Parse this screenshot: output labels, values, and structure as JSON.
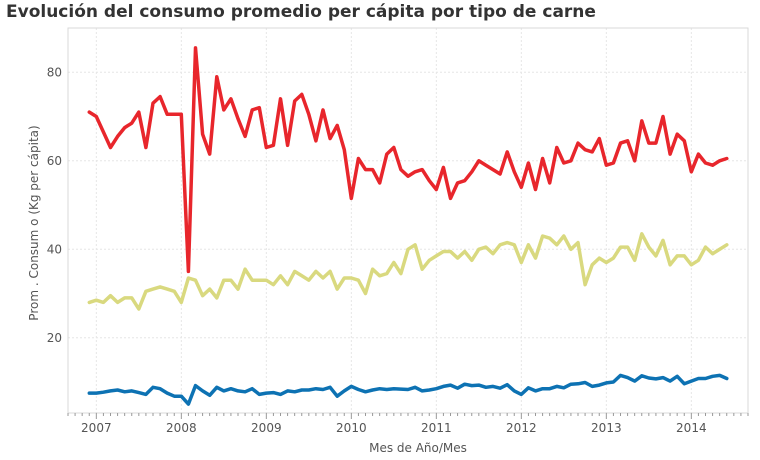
{
  "chart_data": {
    "type": "line",
    "title": "Evolución del consumo promedio per cápita por tipo de carne",
    "xlabel": "Mes de Año/Mes",
    "ylabel": "Prom . Consum o (Kg per cápita)",
    "x_ticks": [
      "2007",
      "2008",
      "2009",
      "2010",
      "2011",
      "2012",
      "2013",
      "2014"
    ],
    "y_ticks": [
      20,
      40,
      60,
      80
    ],
    "ylim": [
      3,
      90
    ],
    "xlim": [
      "2006-09",
      "2014-09"
    ],
    "grid": true,
    "legend": "none",
    "x": [
      "2006-12",
      "2007-01",
      "2007-02",
      "2007-03",
      "2007-04",
      "2007-05",
      "2007-06",
      "2007-07",
      "2007-08",
      "2007-09",
      "2007-10",
      "2007-11",
      "2007-12",
      "2008-01",
      "2008-02",
      "2008-03",
      "2008-04",
      "2008-05",
      "2008-06",
      "2008-07",
      "2008-08",
      "2008-09",
      "2008-10",
      "2008-11",
      "2008-12",
      "2009-01",
      "2009-02",
      "2009-03",
      "2009-04",
      "2009-05",
      "2009-06",
      "2009-07",
      "2009-08",
      "2009-09",
      "2009-10",
      "2009-11",
      "2009-12",
      "2010-01",
      "2010-02",
      "2010-03",
      "2010-04",
      "2010-05",
      "2010-06",
      "2010-07",
      "2010-08",
      "2010-09",
      "2010-10",
      "2010-11",
      "2010-12",
      "2011-01",
      "2011-02",
      "2011-03",
      "2011-04",
      "2011-05",
      "2011-06",
      "2011-07",
      "2011-08",
      "2011-09",
      "2011-10",
      "2011-11",
      "2011-12",
      "2012-01",
      "2012-02",
      "2012-03",
      "2012-04",
      "2012-05",
      "2012-06",
      "2012-07",
      "2012-08",
      "2012-09",
      "2012-10",
      "2012-11",
      "2012-12",
      "2013-01",
      "2013-02",
      "2013-03",
      "2013-04",
      "2013-05",
      "2013-06",
      "2013-07",
      "2013-08",
      "2013-09",
      "2013-10",
      "2013-11",
      "2013-12",
      "2014-01",
      "2014-02",
      "2014-03",
      "2014-04",
      "2014-05",
      "2014-06"
    ],
    "series": [
      {
        "color": "#e8262c",
        "values": [
          71,
          70,
          66.5,
          63,
          65.5,
          67.5,
          68.5,
          71,
          63,
          73,
          74.5,
          70.5,
          70.5,
          70.5,
          35,
          85.5,
          66,
          61.5,
          79,
          71.5,
          74,
          69.5,
          65.5,
          71.5,
          72,
          63,
          63.5,
          74,
          63.5,
          73.5,
          75,
          70.5,
          64.5,
          71.5,
          65,
          68,
          62.5,
          51.5,
          60.5,
          58,
          58,
          55,
          61.5,
          63,
          58,
          56.5,
          57.5,
          58,
          55.5,
          53.5,
          58.5,
          51.5,
          55,
          55.5,
          57.5,
          60,
          59,
          58,
          57,
          62,
          57.5,
          54,
          59.5,
          53.5,
          60.5,
          55,
          63,
          59.5,
          60,
          64,
          62.5,
          62,
          65,
          59,
          59.5,
          64,
          64.5,
          60,
          69,
          64,
          64,
          70,
          61.5,
          66,
          64.5,
          57.5,
          61.5,
          59.5,
          59,
          60,
          60.5
        ]
      },
      {
        "color": "#d9d97f",
        "values": [
          28,
          28.5,
          28,
          29.5,
          28,
          29,
          29,
          26.5,
          30.5,
          31,
          31.5,
          31,
          30.5,
          28,
          33.5,
          33,
          29.5,
          31,
          29,
          33,
          33,
          31,
          35.5,
          33,
          33,
          33,
          32,
          34,
          32,
          35,
          34,
          33,
          35,
          33.5,
          35,
          31,
          33.5,
          33.5,
          33,
          30,
          35.5,
          34,
          34.5,
          37,
          34.5,
          40,
          41,
          35.5,
          37.5,
          38.5,
          39.5,
          39.5,
          38,
          39.5,
          37.5,
          40,
          40.5,
          39,
          41,
          41.5,
          41,
          37,
          41,
          38,
          43,
          42.5,
          41,
          43,
          40,
          41.5,
          32,
          36.5,
          38,
          37,
          38,
          40.5,
          40.5,
          37.5,
          43.5,
          40.5,
          38.5,
          42,
          36.5,
          38.5,
          38.5,
          36.5,
          37.5,
          40.5,
          39,
          40,
          41
        ]
      },
      {
        "color": "#0d72b3",
        "values": [
          7.5,
          7.5,
          7.7,
          8,
          8.2,
          7.8,
          8,
          7.6,
          7.2,
          8.8,
          8.5,
          7.5,
          6.8,
          6.8,
          5,
          9.2,
          8,
          7,
          8.8,
          8,
          8.5,
          8,
          7.8,
          8.5,
          7.2,
          7.5,
          7.6,
          7.2,
          8,
          7.8,
          8.2,
          8.2,
          8.5,
          8.3,
          8.8,
          6.8,
          8,
          9,
          8.3,
          7.8,
          8.2,
          8.5,
          8.3,
          8.5,
          8.4,
          8.3,
          8.8,
          8,
          8.2,
          8.5,
          9,
          9.3,
          8.6,
          9.5,
          9.2,
          9.3,
          8.8,
          9,
          8.6,
          9.4,
          8,
          7.2,
          8.7,
          8,
          8.5,
          8.5,
          9,
          8.7,
          9.5,
          9.6,
          9.9,
          9,
          9.3,
          9.8,
          10,
          11.5,
          11,
          10.2,
          11.4,
          10.9,
          10.7,
          11,
          10.2,
          11.3,
          9.6,
          10.2,
          10.8,
          10.8,
          11.3,
          11.5,
          10.8
        ]
      }
    ]
  }
}
